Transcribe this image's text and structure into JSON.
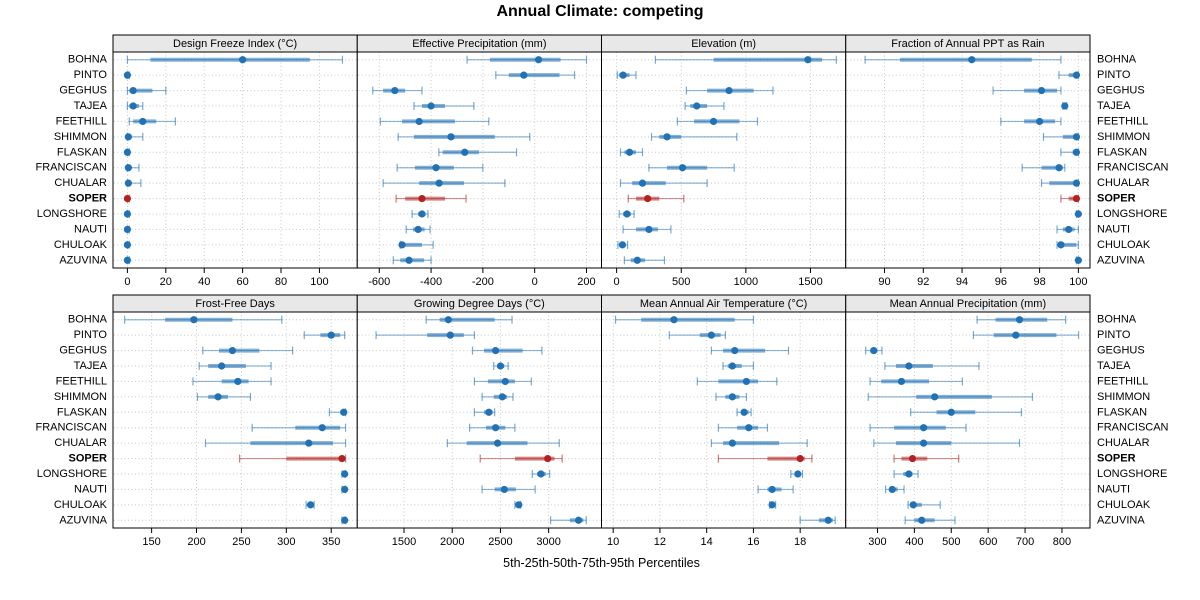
{
  "title": "Annual Climate: competing",
  "caption": "5th-25th-50th-75th-95th Percentiles",
  "chart_data": {
    "type": "scatter",
    "subtype": "percentile-interval-dot-plot",
    "percentiles": [
      5,
      25,
      50,
      75,
      95
    ],
    "legend": "none",
    "grid": "dotted",
    "sites": [
      "BOHNA",
      "PINTO",
      "GEGHUS",
      "TAJEA",
      "FEETHILL",
      "SHIMMON",
      "FLASKAN",
      "FRANCISCAN",
      "CHUALAR",
      "SOPER",
      "LONGSHORE",
      "NAUTI",
      "CHULOAK",
      "AZUVINA"
    ],
    "highlight_site": "SOPER",
    "colors": {
      "series": "#2171B5",
      "highlight": "#B22222",
      "strip_bg": "#E8E8E8",
      "grid": "#C8C8C8",
      "border": "#000000"
    },
    "layout": {
      "rows": 2,
      "cols": 4
    },
    "panels": [
      {
        "title": "Design Freeze Index (°C)",
        "xlim": [
          -7.5,
          119.7
        ],
        "ticks": [
          0,
          20,
          40,
          60,
          80,
          100
        ],
        "values": [
          [
            0,
            12,
            60,
            95,
            112
          ],
          [
            0,
            0,
            0,
            0.3,
            1
          ],
          [
            0,
            1,
            3,
            13,
            20
          ],
          [
            0,
            1,
            3,
            6,
            8
          ],
          [
            1,
            3,
            8,
            15,
            25
          ],
          [
            0,
            0.2,
            0.5,
            2,
            8
          ],
          [
            0,
            0,
            0,
            0.3,
            1
          ],
          [
            0,
            0.2,
            0.5,
            2,
            6
          ],
          [
            0,
            0.2,
            0.5,
            2,
            7
          ],
          [
            0,
            0,
            0,
            0.3,
            1
          ],
          [
            0,
            0,
            0,
            0.3,
            1
          ],
          [
            0,
            0,
            0,
            0.3,
            1
          ],
          [
            0,
            0,
            0,
            0.3,
            1
          ],
          [
            0,
            0,
            0,
            0.3,
            1
          ]
        ]
      },
      {
        "title": "Effective Precipitation (mm)",
        "xlim": [
          -685,
          258
        ],
        "ticks": [
          -600,
          -400,
          -200,
          0,
          200
        ],
        "values": [
          [
            -261,
            -173,
            15,
            100,
            200
          ],
          [
            -150,
            -100,
            -42,
            96,
            154
          ],
          [
            -625,
            -585,
            -540,
            -500,
            -435
          ],
          [
            -466,
            -435,
            -400,
            -346,
            -235
          ],
          [
            -596,
            -512,
            -446,
            -308,
            -177
          ],
          [
            -527,
            -466,
            -323,
            -154,
            -19
          ],
          [
            -370,
            -355,
            -270,
            -215,
            -70
          ],
          [
            -531,
            -462,
            -381,
            -312,
            -200
          ],
          [
            -585,
            -446,
            -369,
            -273,
            -115
          ],
          [
            -535,
            -500,
            -435,
            -346,
            -265
          ],
          [
            -473,
            -450,
            -435,
            -422,
            -412
          ],
          [
            -496,
            -470,
            -450,
            -425,
            -404
          ],
          [
            -519,
            -516,
            -512,
            -435,
            -392
          ],
          [
            -546,
            -519,
            -485,
            -427,
            -400
          ]
        ]
      },
      {
        "title": "Elevation (m)",
        "xlim": [
          -117,
          1773
        ],
        "ticks": [
          0,
          500,
          1000,
          1500
        ],
        "values": [
          [
            300,
            750,
            1480,
            1590,
            1700
          ],
          [
            5,
            20,
            50,
            100,
            150
          ],
          [
            540,
            700,
            870,
            1060,
            1210
          ],
          [
            530,
            570,
            620,
            700,
            830
          ],
          [
            470,
            600,
            750,
            950,
            1090
          ],
          [
            270,
            330,
            390,
            500,
            930
          ],
          [
            30,
            60,
            100,
            150,
            200
          ],
          [
            250,
            390,
            510,
            700,
            910
          ],
          [
            30,
            120,
            200,
            380,
            700
          ],
          [
            90,
            150,
            240,
            330,
            520
          ],
          [
            20,
            50,
            80,
            110,
            135
          ],
          [
            50,
            150,
            250,
            320,
            420
          ],
          [
            10,
            25,
            45,
            65,
            85
          ],
          [
            60,
            110,
            160,
            220,
            370
          ]
        ]
      },
      {
        "title": "Fraction of Annual PPT as Rain",
        "xlim": [
          88,
          100.6
        ],
        "ticks": [
          90,
          92,
          94,
          96,
          98,
          100
        ],
        "values": [
          [
            89,
            90.8,
            94.5,
            97.6,
            99.1
          ],
          [
            99,
            99.5,
            99.9,
            100,
            100
          ],
          [
            95.6,
            97.2,
            98.1,
            98.9,
            99.1
          ],
          [
            99.2,
            99.25,
            99.3,
            99.35,
            99.4
          ],
          [
            96,
            97.2,
            98,
            98.8,
            99.1
          ],
          [
            98.2,
            99.2,
            99.9,
            100,
            100
          ],
          [
            99.1,
            99.7,
            99.9,
            100,
            100
          ],
          [
            97.1,
            98.1,
            99,
            99.2,
            99.3
          ],
          [
            98.1,
            98.5,
            99.9,
            100,
            100
          ],
          [
            99.1,
            99.5,
            99.9,
            100,
            100
          ],
          [
            99.9,
            99.95,
            100,
            100,
            100
          ],
          [
            98.9,
            99.2,
            99.5,
            99.8,
            100
          ],
          [
            98.9,
            99,
            99.1,
            99.9,
            100
          ],
          [
            99.9,
            99.95,
            100,
            100,
            100
          ]
        ]
      },
      {
        "title": "Frost-Free Days",
        "xlim": [
          107,
          379
        ],
        "ticks": [
          150,
          200,
          250,
          300,
          350
        ],
        "values": [
          [
            120,
            165,
            197,
            240,
            295
          ],
          [
            320,
            338,
            350,
            360,
            365
          ],
          [
            207,
            225,
            240,
            270,
            307
          ],
          [
            203,
            213,
            228,
            255,
            283
          ],
          [
            196,
            228,
            246,
            258,
            283
          ],
          [
            201,
            213,
            224,
            235,
            260
          ],
          [
            348,
            360,
            364,
            365,
            366
          ],
          [
            262,
            310,
            340,
            360,
            366
          ],
          [
            210,
            260,
            325,
            352,
            366
          ],
          [
            248,
            300,
            362,
            365,
            366
          ],
          [
            362,
            364,
            365,
            365,
            366
          ],
          [
            362,
            364,
            365,
            365,
            366
          ],
          [
            322,
            325,
            327,
            329,
            331
          ],
          [
            362,
            364,
            365,
            365,
            366
          ]
        ]
      },
      {
        "title": "Growing Degree Days (°C)",
        "xlim": [
          1015,
          3548
        ],
        "ticks": [
          1500,
          2000,
          2500,
          3000
        ],
        "values": [
          [
            1730,
            1870,
            1960,
            2440,
            2620
          ],
          [
            1210,
            1740,
            1980,
            2120,
            2230
          ],
          [
            2210,
            2330,
            2450,
            2730,
            2930
          ],
          [
            2430,
            2470,
            2500,
            2540,
            2580
          ],
          [
            2230,
            2370,
            2550,
            2650,
            2820
          ],
          [
            2310,
            2430,
            2520,
            2570,
            2630
          ],
          [
            2230,
            2330,
            2380,
            2420,
            2440
          ],
          [
            2180,
            2350,
            2450,
            2550,
            2650
          ],
          [
            1950,
            2150,
            2470,
            2780,
            3110
          ],
          [
            2290,
            2650,
            2990,
            3060,
            3140
          ],
          [
            2830,
            2880,
            2920,
            2970,
            3010
          ],
          [
            2310,
            2440,
            2540,
            2660,
            2860
          ],
          [
            2650,
            2670,
            2690,
            2700,
            2710
          ],
          [
            3020,
            3220,
            3310,
            3360,
            3390
          ]
        ]
      },
      {
        "title": "Mean Annual Air Temperature (°C)",
        "xlim": [
          9.5,
          19.95
        ],
        "ticks": [
          10,
          12,
          14,
          16,
          18
        ],
        "values": [
          [
            10.1,
            11.2,
            12.6,
            15.2,
            16.0
          ],
          [
            12.4,
            13.7,
            14.2,
            14.6,
            14.8
          ],
          [
            14.2,
            14.7,
            15.2,
            16.5,
            17.5
          ],
          [
            14.7,
            14.9,
            15.1,
            15.5,
            16.0
          ],
          [
            13.6,
            14.5,
            15.7,
            16.2,
            17.0
          ],
          [
            14.4,
            14.8,
            15.1,
            15.4,
            15.7
          ],
          [
            15.3,
            15.5,
            15.6,
            15.8,
            15.9
          ],
          [
            14.5,
            15.3,
            15.8,
            16.2,
            16.6
          ],
          [
            14.2,
            14.7,
            15.1,
            17.1,
            18.3
          ],
          [
            14.5,
            16.6,
            18.0,
            18.2,
            18.5
          ],
          [
            17.6,
            17.8,
            17.9,
            18.0,
            18.1
          ],
          [
            16.2,
            16.6,
            16.8,
            17.2,
            17.7
          ],
          [
            16.7,
            16.75,
            16.8,
            16.9,
            16.95
          ],
          [
            18.0,
            18.8,
            19.2,
            19.4,
            19.5
          ]
        ]
      },
      {
        "title": "Mean Annual Precipitation (mm)",
        "xlim": [
          214,
          876
        ],
        "ticks": [
          300,
          400,
          500,
          600,
          700,
          800
        ],
        "values": [
          [
            570,
            620,
            685,
            760,
            810
          ],
          [
            560,
            615,
            675,
            785,
            845
          ],
          [
            268,
            280,
            290,
            300,
            312
          ],
          [
            320,
            350,
            385,
            450,
            575
          ],
          [
            280,
            310,
            365,
            440,
            530
          ],
          [
            275,
            405,
            455,
            610,
            720
          ],
          [
            390,
            460,
            500,
            565,
            690
          ],
          [
            280,
            345,
            425,
            485,
            540
          ],
          [
            290,
            350,
            425,
            500,
            685
          ],
          [
            345,
            365,
            395,
            435,
            520
          ],
          [
            345,
            370,
            385,
            395,
            410
          ],
          [
            322,
            333,
            340,
            355,
            372
          ],
          [
            383,
            390,
            397,
            420,
            470
          ],
          [
            375,
            400,
            420,
            455,
            510
          ]
        ]
      }
    ]
  }
}
